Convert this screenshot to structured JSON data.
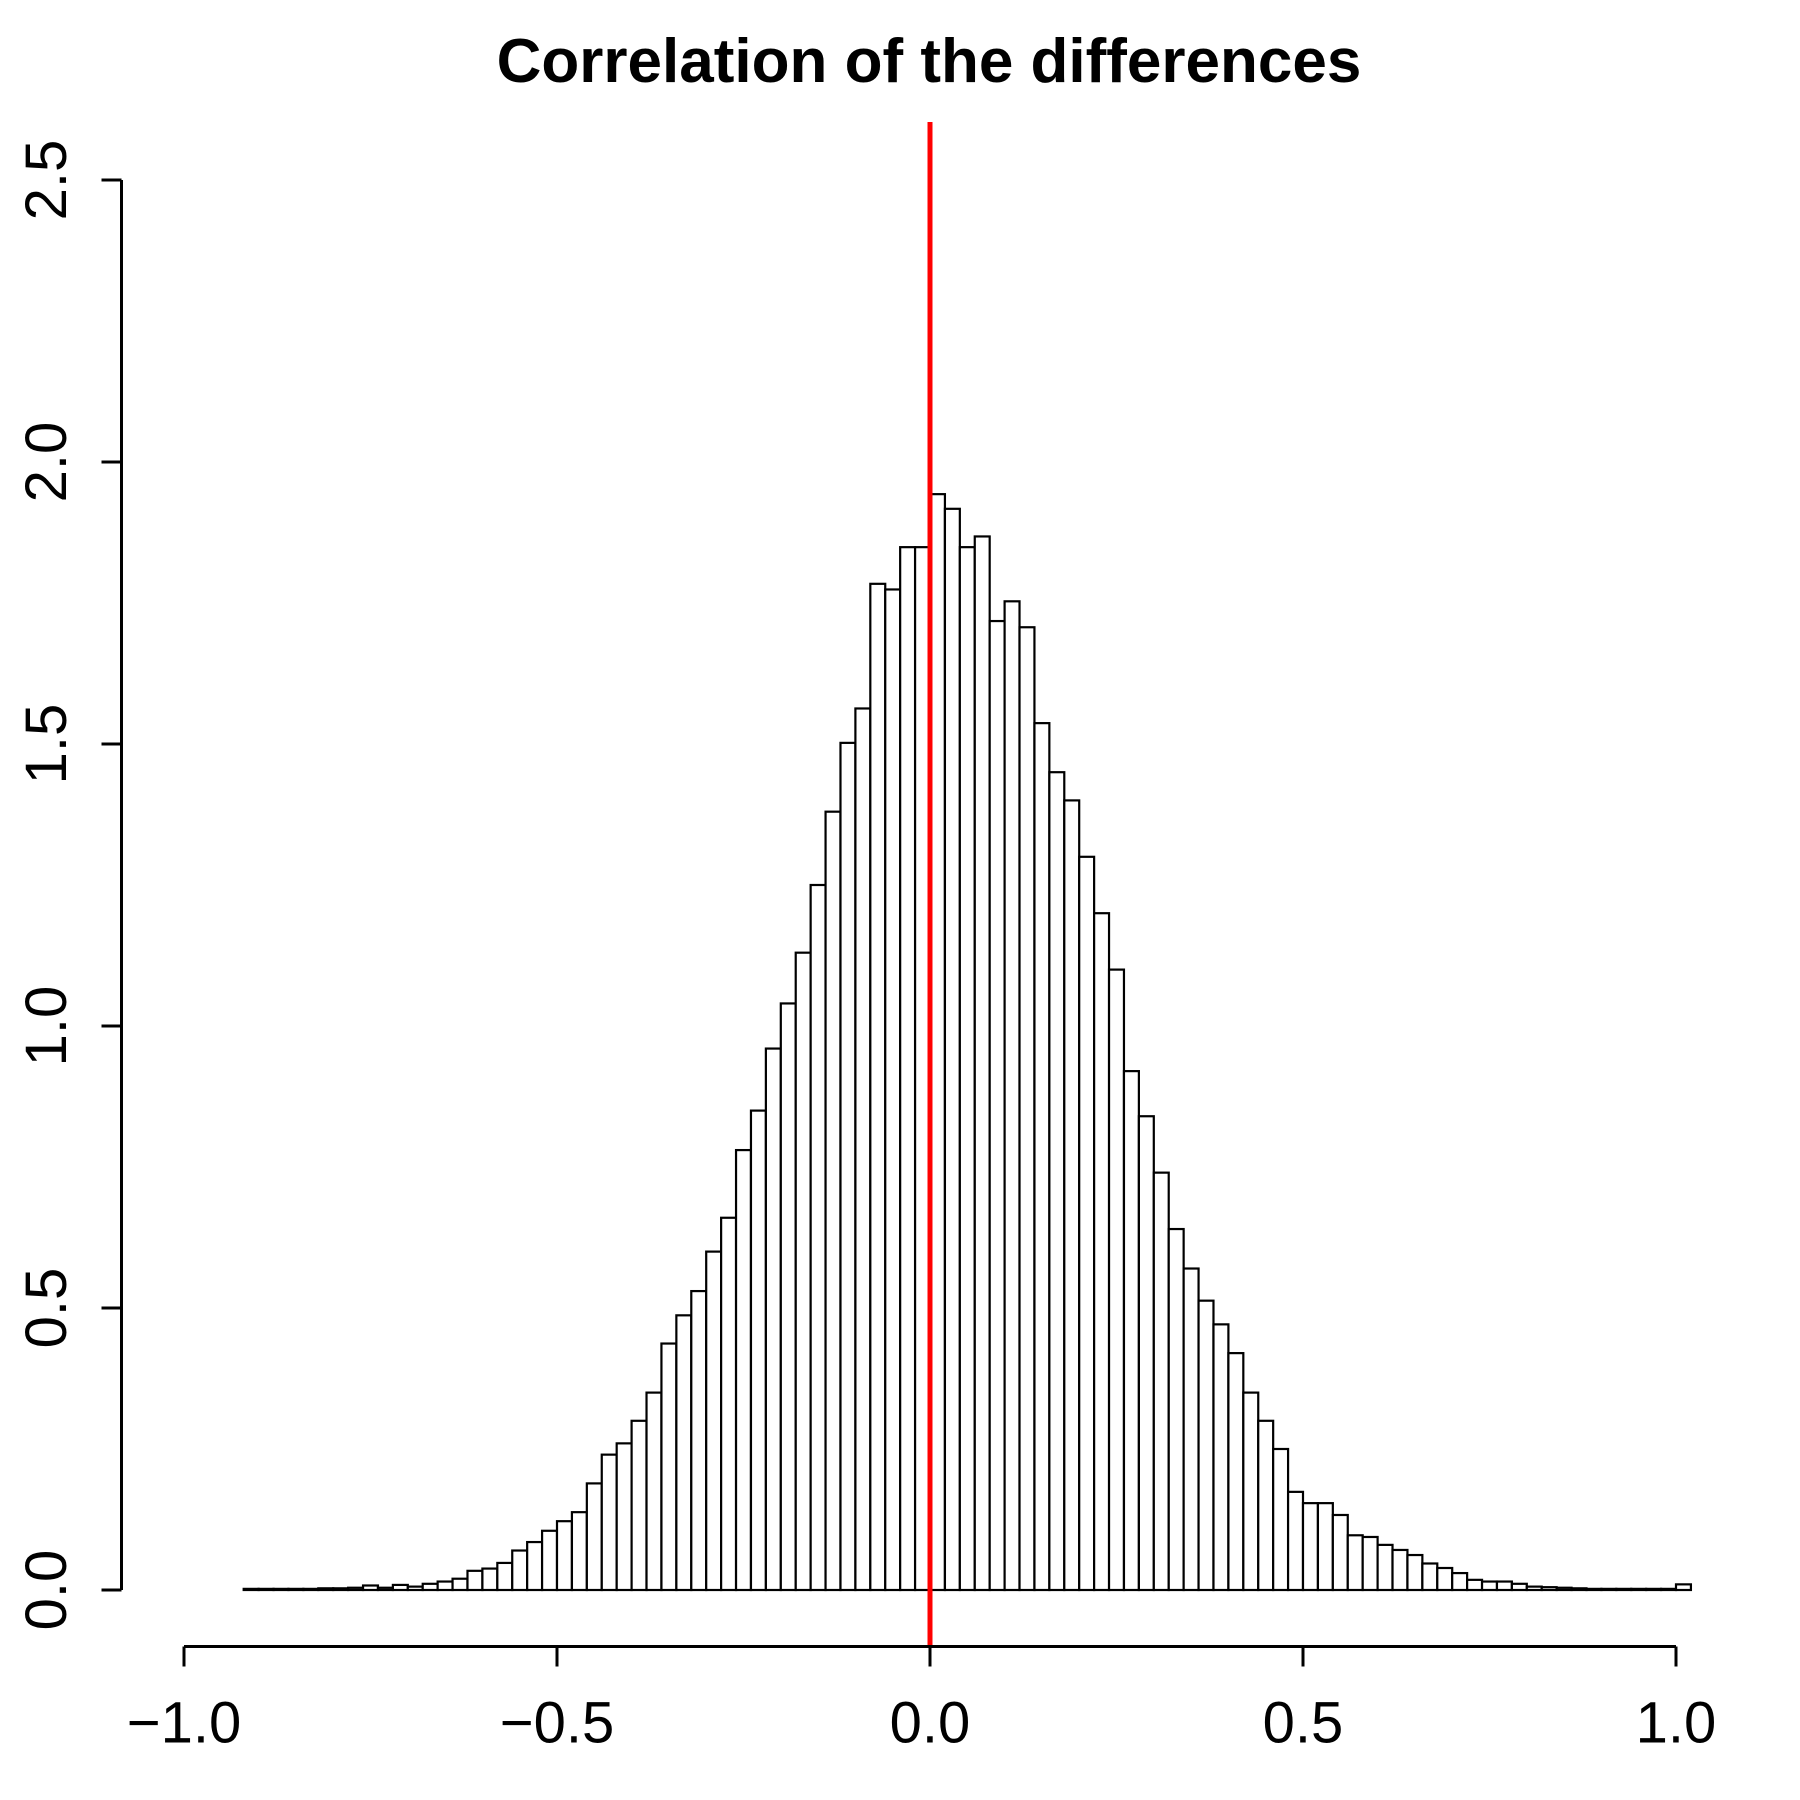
{
  "title": "Correlation of the differences",
  "chart_data": {
    "type": "bar",
    "subtype": "density-histogram",
    "title": "Correlation of the differences",
    "xlabel": "",
    "ylabel": "",
    "xlim": [
      -1.0,
      1.0
    ],
    "ylim": [
      0.0,
      2.5
    ],
    "grid": false,
    "legend_position": "none",
    "x_ticks": [
      -1.0,
      -0.5,
      0.0,
      0.5,
      1.0
    ],
    "x_tick_labels": [
      "−1.0",
      "−0.5",
      "0.0",
      "0.5",
      "1.0"
    ],
    "y_ticks": [
      0.0,
      0.5,
      1.0,
      1.5,
      2.0,
      2.5
    ],
    "y_tick_labels": [
      "0.0",
      "0.5",
      "1.0",
      "1.5",
      "2.0",
      "2.5"
    ],
    "bin_start": -0.92,
    "bin_width": 0.02,
    "densities": [
      0.002,
      0.002,
      0.002,
      0.002,
      0.002,
      0.003,
      0.003,
      0.004,
      0.008,
      0.004,
      0.009,
      0.006,
      0.011,
      0.015,
      0.02,
      0.034,
      0.038,
      0.048,
      0.07,
      0.085,
      0.105,
      0.122,
      0.138,
      0.189,
      0.24,
      0.26,
      0.3,
      0.35,
      0.437,
      0.487,
      0.53,
      0.6,
      0.66,
      0.78,
      0.85,
      0.96,
      1.04,
      1.13,
      1.25,
      1.38,
      1.502,
      1.563,
      1.784,
      1.774,
      1.849,
      1.849,
      1.943,
      1.917,
      1.849,
      1.868,
      1.718,
      1.753,
      1.707,
      1.537,
      1.45,
      1.4,
      1.3,
      1.2,
      1.1,
      0.92,
      0.84,
      0.74,
      0.64,
      0.57,
      0.513,
      0.471,
      0.42,
      0.35,
      0.3,
      0.25,
      0.174,
      0.154,
      0.154,
      0.133,
      0.097,
      0.094,
      0.08,
      0.071,
      0.062,
      0.047,
      0.039,
      0.03,
      0.018,
      0.015,
      0.015,
      0.011,
      0.006,
      0.005,
      0.004,
      0.003,
      0.002,
      0.002,
      0.002,
      0.002,
      0.002,
      0.002,
      0.01
    ],
    "marker_line": {
      "x": 0.0,
      "color": "#FF0000"
    },
    "bar_fill": "#FFFFFF",
    "bar_stroke": "#000000",
    "axis_color": "#000000"
  }
}
